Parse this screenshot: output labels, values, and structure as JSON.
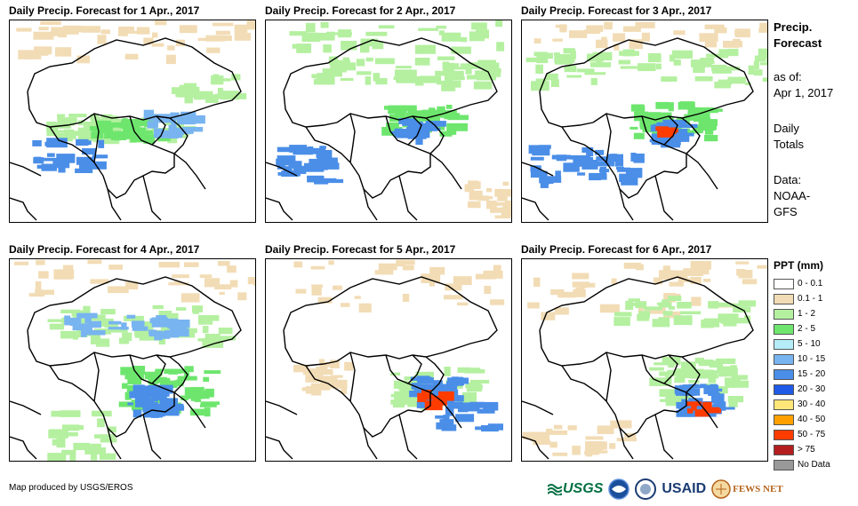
{
  "panels": [
    {
      "title": "Daily Precip. Forecast for 1 Apr., 2017"
    },
    {
      "title": "Daily Precip. Forecast for 2 Apr., 2017"
    },
    {
      "title": "Daily Precip. Forecast for 3 Apr., 2017"
    },
    {
      "title": "Daily Precip. Forecast for 4 Apr., 2017"
    },
    {
      "title": "Daily Precip. Forecast for 5 Apr., 2017"
    },
    {
      "title": "Daily Precip. Forecast for 6 Apr., 2017"
    }
  ],
  "sidebar": {
    "line1": "Precip.",
    "line2": "Forecast",
    "as_of": "as of:",
    "date": "Apr 1, 2017",
    "totals1": "Daily",
    "totals2": "Totals",
    "data_label": "Data:",
    "source1": "NOAA-",
    "source2": "GFS"
  },
  "legend": {
    "title": "PPT (mm)",
    "items": [
      {
        "label": "0 - 0.1",
        "color": "#ffffff"
      },
      {
        "label": "0.1 - 1",
        "color": "#f2dcb5"
      },
      {
        "label": "1 - 2",
        "color": "#b4f0a0"
      },
      {
        "label": "2 - 5",
        "color": "#6ee66e"
      },
      {
        "label": "5 - 10",
        "color": "#b4ecf8"
      },
      {
        "label": "10 - 15",
        "color": "#78b4f0"
      },
      {
        "label": "15 - 20",
        "color": "#4a8ee8"
      },
      {
        "label": "20 - 30",
        "color": "#1e5ae6"
      },
      {
        "label": "30 - 40",
        "color": "#ffe678"
      },
      {
        "label": "40 - 50",
        "color": "#ffa000"
      },
      {
        "label": "50 - 75",
        "color": "#ff3c00"
      },
      {
        "label": "> 75",
        "color": "#b41e1e"
      },
      {
        "label": "No Data",
        "color": "#999999"
      }
    ]
  },
  "credit": "Map produced by USGS/EROS",
  "logos": {
    "usgs": "USGS",
    "usaid": "USAID",
    "fews": "FEWS NET"
  }
}
